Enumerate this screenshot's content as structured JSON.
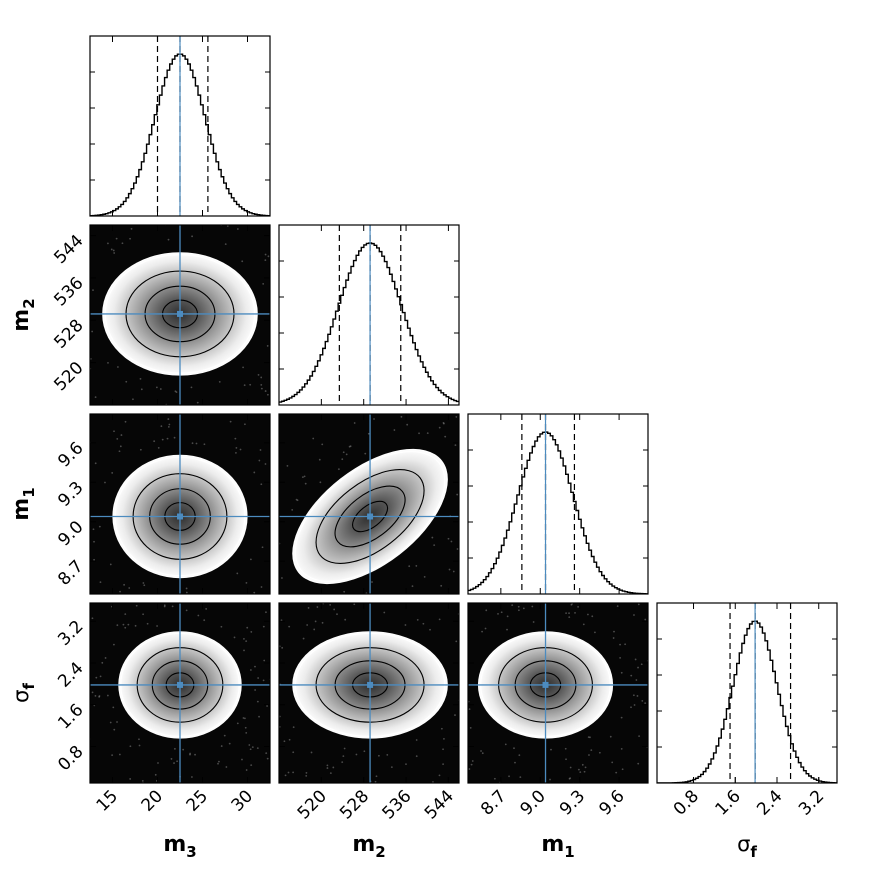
{
  "chart_data": {
    "type": "corner",
    "parameters": [
      {
        "key": "m3",
        "label": "m",
        "sub": "3",
        "range": [
          12.5,
          32.5
        ],
        "ticks": [
          "15",
          "20",
          "25",
          "30"
        ],
        "tick_values": [
          15,
          20,
          25,
          30
        ],
        "mean": 22.5,
        "sigma": 2.8,
        "quantiles": [
          20.0,
          22.5,
          25.6
        ]
      },
      {
        "key": "m2",
        "label": "m",
        "sub": "2",
        "range": [
          512,
          546
        ],
        "ticks": [
          "520",
          "528",
          "536",
          "544"
        ],
        "tick_values": [
          520,
          528,
          536,
          544
        ],
        "mean": 529.2,
        "sigma": 6.0,
        "quantiles": [
          523.4,
          529.2,
          535.0
        ]
      },
      {
        "key": "m1",
        "label": "m",
        "sub": "1",
        "range": [
          8.45,
          9.82
        ],
        "ticks": [
          "8.7",
          "9.0",
          "9.3",
          "9.6"
        ],
        "tick_values": [
          8.7,
          9.0,
          9.3,
          9.6
        ],
        "mean": 9.04,
        "sigma": 0.21,
        "quantiles": [
          8.86,
          9.04,
          9.26
        ]
      },
      {
        "key": "sf",
        "label": "σ",
        "sub": "f",
        "range": [
          0.1,
          3.55
        ],
        "ticks": [
          "0.8",
          "1.6",
          "2.4",
          "3.2"
        ],
        "tick_values": [
          0.8,
          1.6,
          2.4,
          3.2
        ],
        "mean": 1.98,
        "sigma": 0.42,
        "quantiles": [
          1.5,
          1.98,
          2.66
        ]
      }
    ],
    "correlations": [
      {
        "pair": [
          "m3",
          "m2"
        ],
        "rho": 0.0
      },
      {
        "pair": [
          "m3",
          "m1"
        ],
        "rho": 0.0
      },
      {
        "pair": [
          "m2",
          "m1"
        ],
        "rho": 0.55
      },
      {
        "pair": [
          "m3",
          "sf"
        ],
        "rho": 0.0
      },
      {
        "pair": [
          "m2",
          "sf"
        ],
        "rho": 0.0
      },
      {
        "pair": [
          "m1",
          "sf"
        ],
        "rho": 0.0
      }
    ],
    "truth_line_color": "#4c8bbf",
    "contour_line_color": "#000000",
    "quantile_line_style": "dashed",
    "density_colormap": "gray (black low, white high)"
  }
}
